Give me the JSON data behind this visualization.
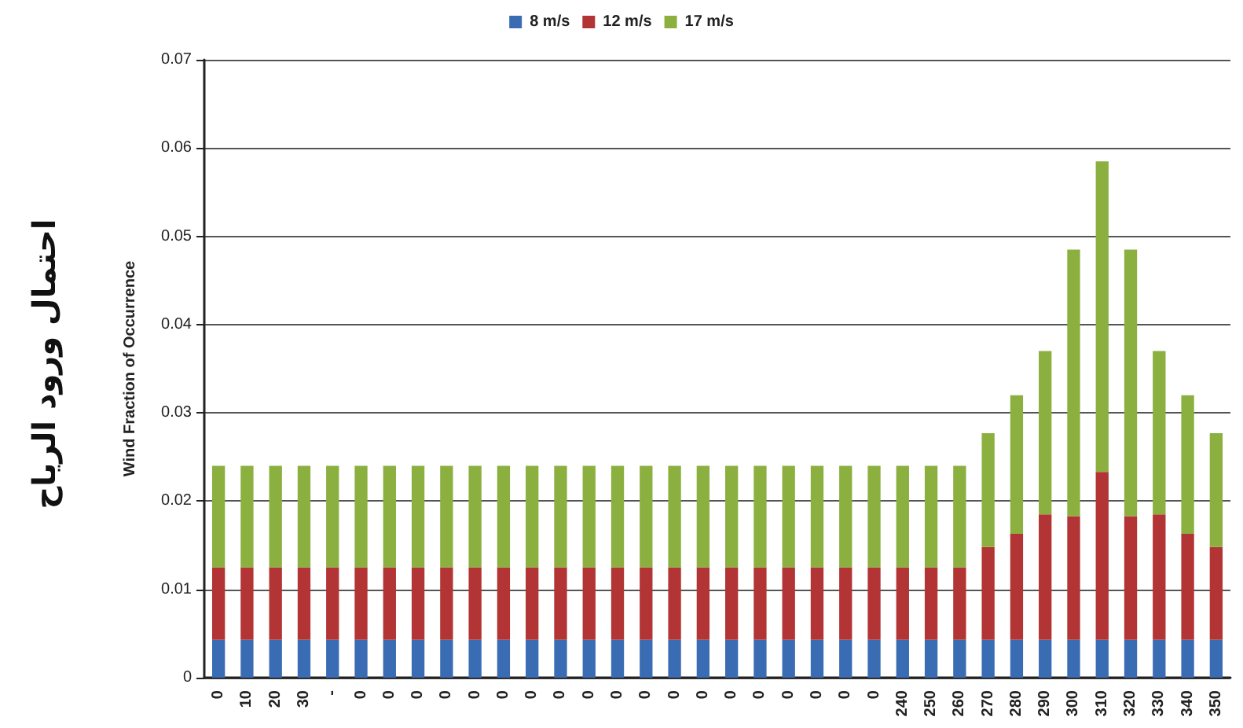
{
  "chart_data": {
    "type": "bar",
    "stacked": true,
    "ylabel": "Wind Fraction of Occurrence",
    "annotations": [
      "احتمال ورود الرياح"
    ],
    "categories": [
      "0",
      "10",
      "20",
      "30",
      "-",
      "0",
      "0",
      "0",
      "0",
      "0",
      "0",
      "0",
      "0",
      "0",
      "0",
      "0",
      "0",
      "0",
      "0",
      "0",
      "0",
      "0",
      "0",
      "0",
      "240",
      "250",
      "260",
      "270",
      "280",
      "290",
      "300",
      "310",
      "320",
      "330",
      "340",
      "350"
    ],
    "series": [
      {
        "name": "8 m/s",
        "color": "#3a6cb4",
        "values": [
          0.0043,
          0.0043,
          0.0043,
          0.0043,
          0.0043,
          0.0043,
          0.0043,
          0.0043,
          0.0043,
          0.0043,
          0.0043,
          0.0043,
          0.0043,
          0.0043,
          0.0043,
          0.0043,
          0.0043,
          0.0043,
          0.0043,
          0.0043,
          0.0043,
          0.0043,
          0.0043,
          0.0043,
          0.0043,
          0.0043,
          0.0043,
          0.0043,
          0.0043,
          0.0043,
          0.0043,
          0.0043,
          0.0043,
          0.0043,
          0.0043,
          0.0043
        ]
      },
      {
        "name": "12 m/s",
        "color": "#b23434",
        "values": [
          0.0082,
          0.0082,
          0.0082,
          0.0082,
          0.0082,
          0.0082,
          0.0082,
          0.0082,
          0.0082,
          0.0082,
          0.0082,
          0.0082,
          0.0082,
          0.0082,
          0.0082,
          0.0082,
          0.0082,
          0.0082,
          0.0082,
          0.0082,
          0.0082,
          0.0082,
          0.0082,
          0.0082,
          0.0082,
          0.0082,
          0.0082,
          0.0105,
          0.012,
          0.0142,
          0.014,
          0.019,
          0.014,
          0.0142,
          0.012,
          0.0105
        ]
      },
      {
        "name": "17 m/s",
        "color": "#8cb040",
        "values": [
          0.0115,
          0.0115,
          0.0115,
          0.0115,
          0.0115,
          0.0115,
          0.0115,
          0.0115,
          0.0115,
          0.0115,
          0.0115,
          0.0115,
          0.0115,
          0.0115,
          0.0115,
          0.0115,
          0.0115,
          0.0115,
          0.0115,
          0.0115,
          0.0115,
          0.0115,
          0.0115,
          0.0115,
          0.0115,
          0.0115,
          0.0115,
          0.0129,
          0.0157,
          0.0185,
          0.0302,
          0.0352,
          0.0302,
          0.0185,
          0.0157,
          0.0129
        ]
      }
    ],
    "ylim": [
      0,
      0.07
    ],
    "yticks": [
      0,
      0.01,
      0.02,
      0.03,
      0.04,
      0.05,
      0.06,
      0.07
    ],
    "grid": "y",
    "legend": "top"
  }
}
